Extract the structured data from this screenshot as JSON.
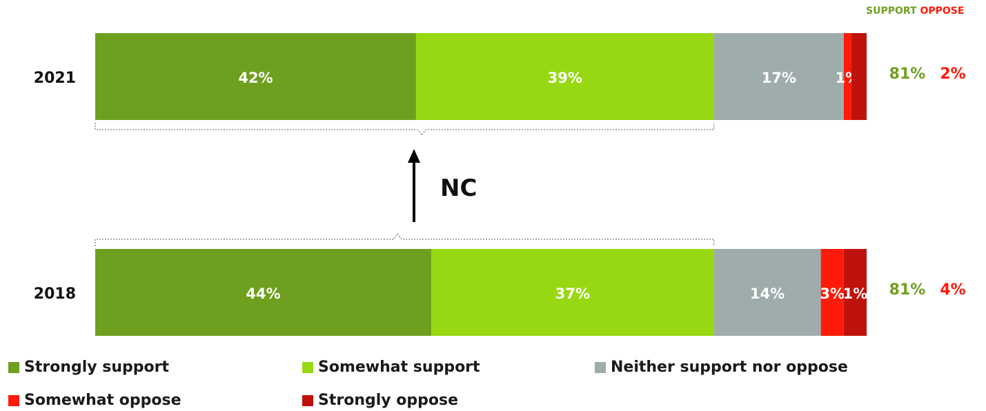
{
  "header": {
    "support_label": "SUPPORT",
    "oppose_label": "OPPOSE"
  },
  "colors": {
    "strongly_support": "#6f9f1f",
    "somewhat_support": "#97d813",
    "neither": "#9eadab",
    "somewhat_oppose": "#ff1a0a",
    "strongly_oppose": "#c0120c",
    "support_text": "#6f9f1f",
    "oppose_text": "#ff1a0a",
    "nc_text": "#111111"
  },
  "annotation": {
    "label": "NC"
  },
  "chart_data": {
    "type": "bar",
    "orientation": "horizontal",
    "stacked": true,
    "categories": [
      "2021",
      "2018"
    ],
    "series": [
      {
        "name": "Strongly support",
        "values": [
          42,
          44
        ],
        "labels": [
          "42%",
          "44%"
        ]
      },
      {
        "name": "Somewhat support",
        "values": [
          39,
          37
        ],
        "labels": [
          "39%",
          "37%"
        ]
      },
      {
        "name": "Neither support nor oppose",
        "values": [
          17,
          14
        ],
        "labels": [
          "17%",
          "14%"
        ]
      },
      {
        "name": "Somewhat oppose",
        "values": [
          1,
          3
        ],
        "labels": [
          "1%",
          "3%"
        ]
      },
      {
        "name": "Strongly oppose",
        "values": [
          1,
          1
        ],
        "labels": [
          "",
          "1%"
        ]
      }
    ],
    "totals": {
      "support": [
        "81%",
        "81%"
      ],
      "oppose": [
        "2%",
        "4%"
      ]
    },
    "legend_position": "bottom"
  }
}
